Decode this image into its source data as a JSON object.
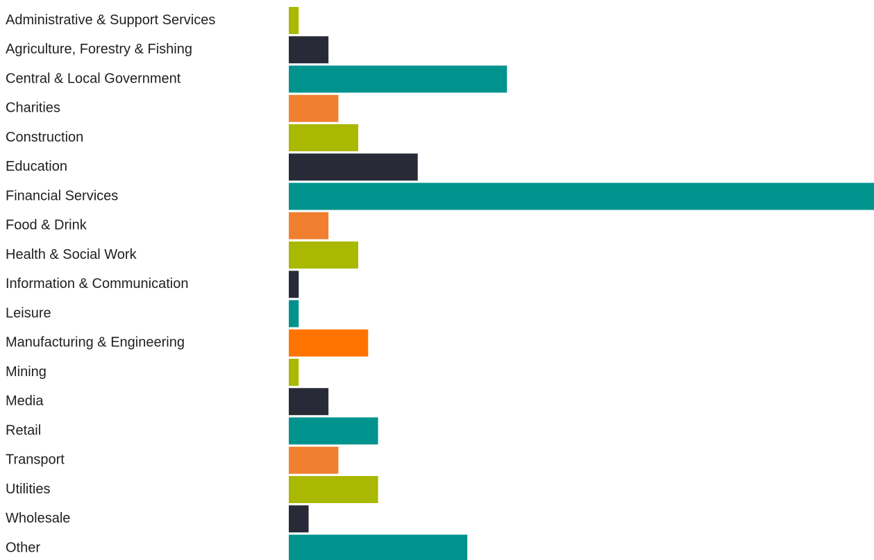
{
  "chart_data": {
    "type": "bar",
    "orientation": "horizontal",
    "categories": [
      "Administrative & Support Services",
      "Agriculture, Forestry & Fishing",
      "Central & Local Government",
      "Charities",
      "Construction",
      "Education",
      "Financial Services",
      "Food & Drink",
      "Health & Social Work",
      "Information & Communication",
      "Leisure",
      "Manufacturing & Engineering",
      "Mining",
      "Media",
      "Retail",
      "Transport",
      "Utilities",
      "Wholesale",
      "Other"
    ],
    "values": [
      1,
      4,
      22,
      5,
      7,
      13,
      59,
      4,
      7,
      1,
      1,
      8,
      1,
      4,
      9,
      5,
      9,
      2,
      18
    ],
    "colors": [
      "#a9b800",
      "#282a37",
      "#00938d",
      "#f08030",
      "#a9b800",
      "#282a37",
      "#00938d",
      "#f08030",
      "#a9b800",
      "#282a37",
      "#00938d",
      "#ff7300",
      "#a9b800",
      "#282a37",
      "#00938d",
      "#f08030",
      "#a9b800",
      "#282a37",
      "#00938d"
    ],
    "xlim": [
      0,
      59
    ],
    "grid": false,
    "legend": "none",
    "title": "",
    "xlabel": "",
    "ylabel": ""
  }
}
